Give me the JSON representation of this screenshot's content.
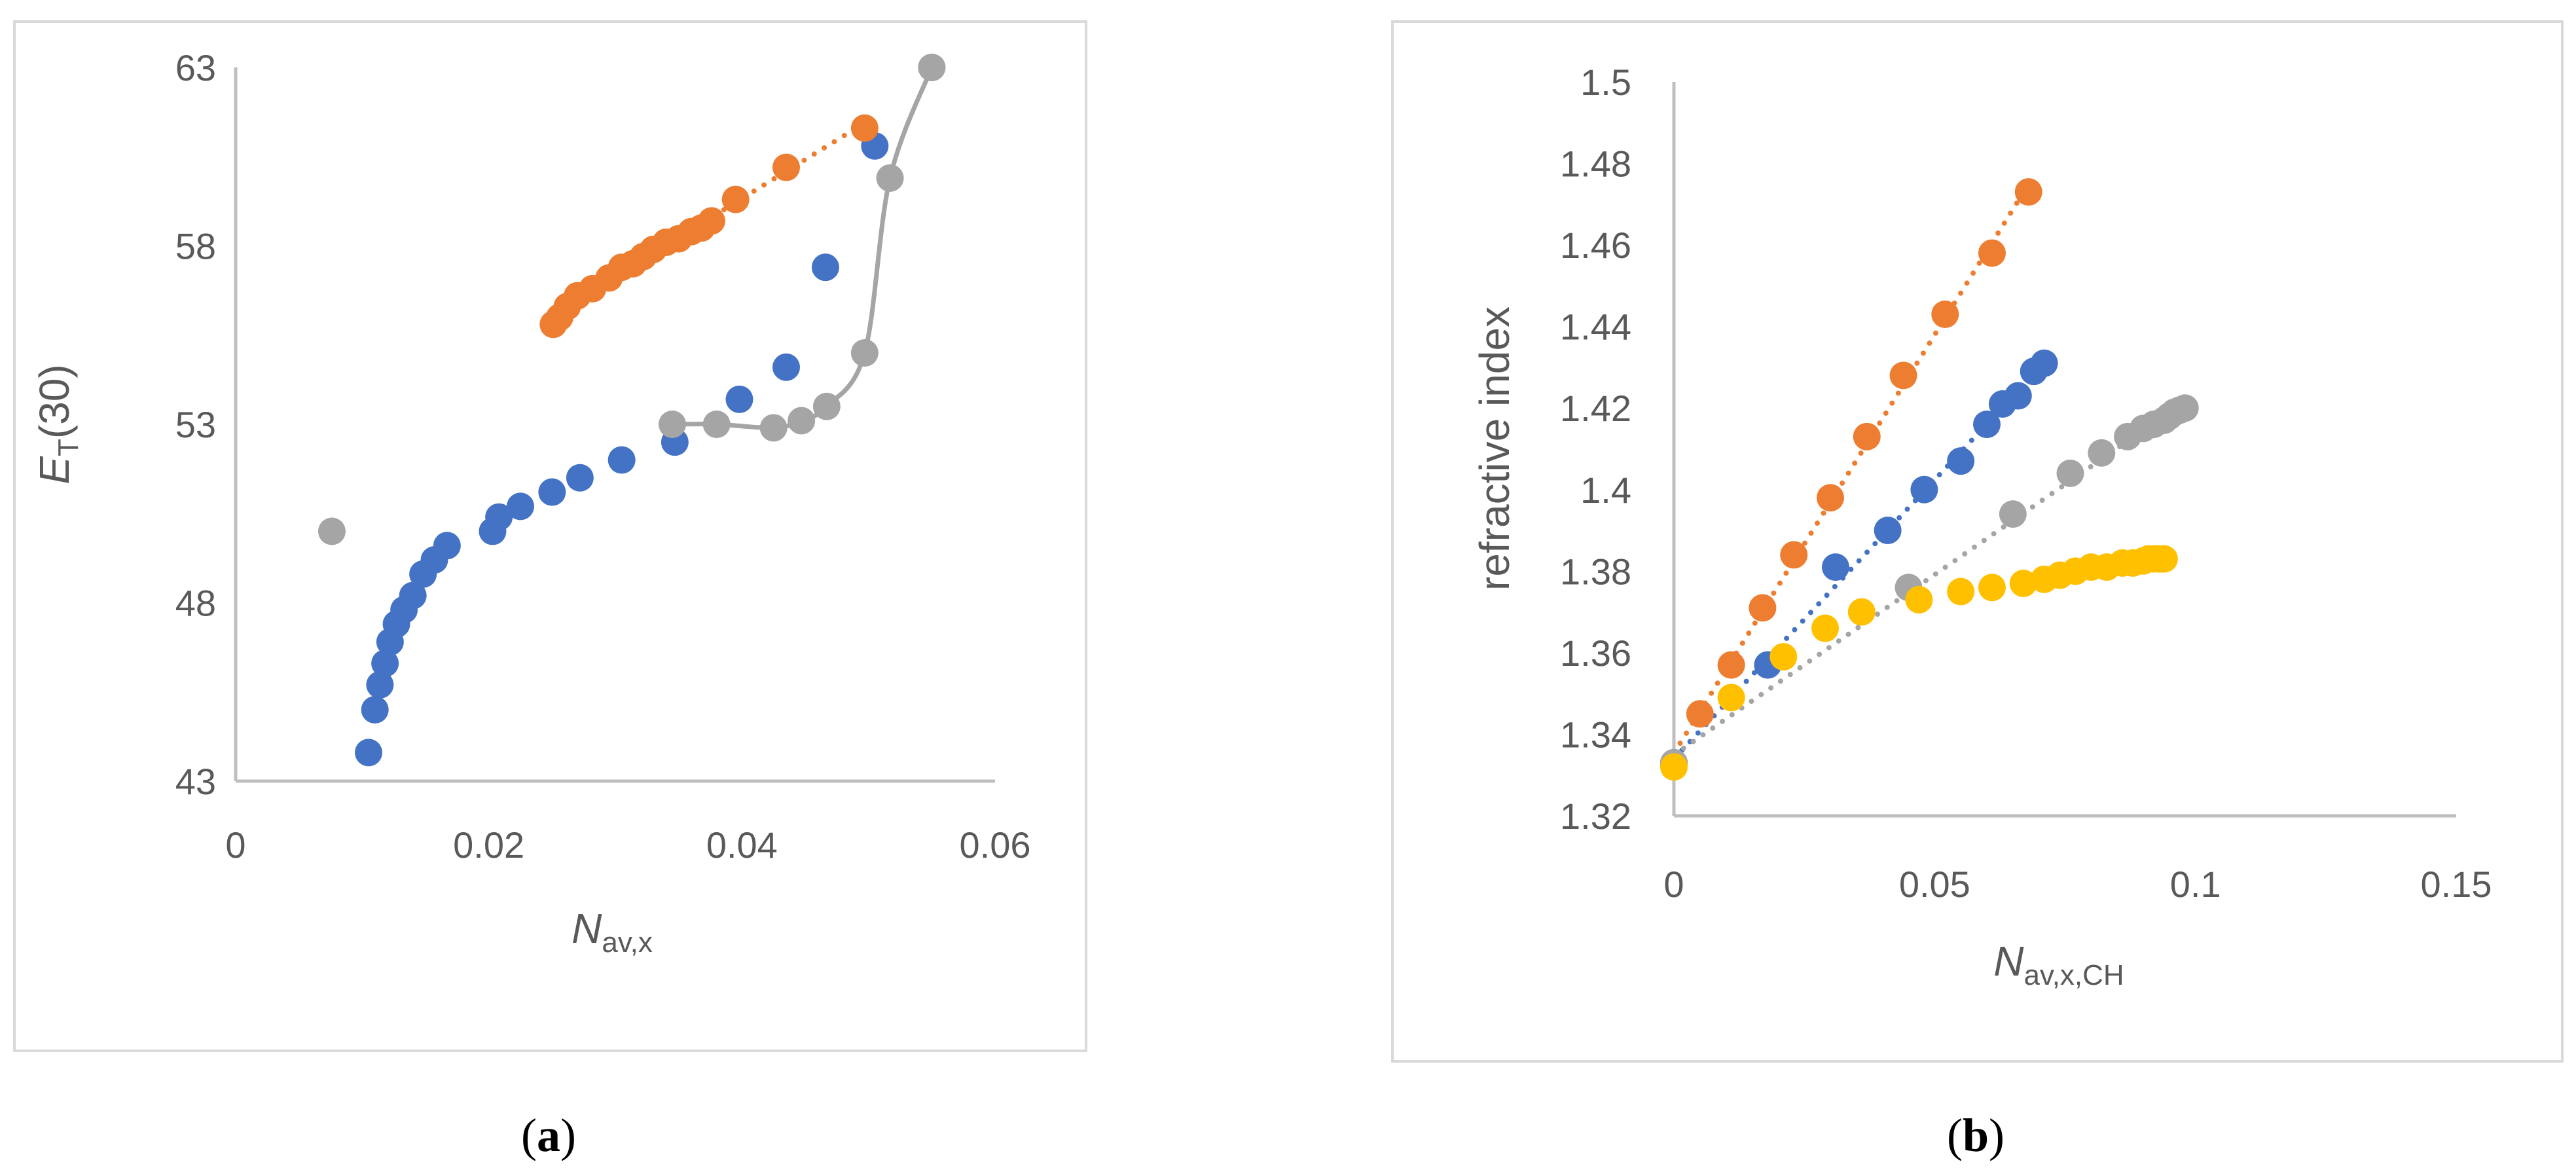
{
  "chart_data": [
    {
      "type": "scatter",
      "panel": "a",
      "caption": {
        "open": "(",
        "letter": "a",
        "close": ")"
      },
      "xlabel": {
        "main": "N",
        "sub": "av,x"
      },
      "ylabel": {
        "main": "E",
        "sub": "T",
        "suffix": "(30)"
      },
      "xlim": [
        0,
        0.06
      ],
      "ylim": [
        43,
        63
      ],
      "x_ticks": [
        0,
        0.02,
        0.04,
        0.06
      ],
      "x_tick_labels": [
        "0",
        "0.02",
        "0.04",
        "0.06"
      ],
      "y_ticks": [
        43,
        48,
        53,
        58,
        63
      ],
      "y_tick_labels": [
        "43",
        "48",
        "53",
        "58",
        "63"
      ],
      "grid": false,
      "series": [
        {
          "name": "blue",
          "color": "#4472C4",
          "line": "none",
          "points": [
            [
              0.0105,
              43.8
            ],
            [
              0.011,
              45.0
            ],
            [
              0.0114,
              45.7
            ],
            [
              0.0118,
              46.3
            ],
            [
              0.0122,
              46.9
            ],
            [
              0.0127,
              47.4
            ],
            [
              0.0133,
              47.8
            ],
            [
              0.014,
              48.2
            ],
            [
              0.0148,
              48.8
            ],
            [
              0.0157,
              49.2
            ],
            [
              0.0167,
              49.6
            ],
            [
              0.0203,
              50.0
            ],
            [
              0.0208,
              50.4
            ],
            [
              0.0225,
              50.7
            ],
            [
              0.025,
              51.1
            ],
            [
              0.0272,
              51.5
            ],
            [
              0.0305,
              52.0
            ],
            [
              0.0347,
              52.5
            ],
            [
              0.0398,
              53.7
            ],
            [
              0.0435,
              54.6
            ],
            [
              0.0466,
              57.4
            ],
            [
              0.0505,
              60.8
            ],
            [
              0.055,
              63.0
            ]
          ]
        },
        {
          "name": "orange",
          "color": "#ED7D31",
          "line": "dotted-trend",
          "points": [
            [
              0.0251,
              55.8
            ],
            [
              0.0256,
              56.0
            ],
            [
              0.0262,
              56.3
            ],
            [
              0.027,
              56.6
            ],
            [
              0.0282,
              56.8
            ],
            [
              0.0295,
              57.1
            ],
            [
              0.0305,
              57.4
            ],
            [
              0.0314,
              57.5
            ],
            [
              0.0322,
              57.7
            ],
            [
              0.033,
              57.9
            ],
            [
              0.034,
              58.1
            ],
            [
              0.035,
              58.2
            ],
            [
              0.036,
              58.4
            ],
            [
              0.0368,
              58.5
            ],
            [
              0.0376,
              58.7
            ],
            [
              0.0395,
              59.3
            ],
            [
              0.0435,
              60.2
            ],
            [
              0.0497,
              61.3
            ]
          ]
        },
        {
          "name": "gray",
          "color": "#A5A5A5",
          "line": "smooth",
          "points": [
            [
              0.0076,
              50.0
            ],
            [
              0.0345,
              53.0
            ],
            [
              0.038,
              53.0
            ],
            [
              0.0425,
              52.9
            ],
            [
              0.0447,
              53.1
            ],
            [
              0.0467,
              53.5
            ],
            [
              0.0497,
              55.0
            ],
            [
              0.0517,
              59.9
            ],
            [
              0.055,
              63.0
            ]
          ]
        }
      ]
    },
    {
      "type": "scatter",
      "panel": "b",
      "caption": {
        "open": "(",
        "letter": "b",
        "close": ")"
      },
      "xlabel": {
        "main": "N",
        "sub": "av,x,CH"
      },
      "ylabel": {
        "main": "refractive index"
      },
      "xlim": [
        0,
        0.15
      ],
      "ylim": [
        1.32,
        1.5
      ],
      "x_ticks": [
        0,
        0.05,
        0.1,
        0.15
      ],
      "x_tick_labels": [
        "0",
        "0.05",
        "0.1",
        "0.15"
      ],
      "y_ticks": [
        1.32,
        1.34,
        1.36,
        1.38,
        1.4,
        1.42,
        1.44,
        1.46,
        1.48,
        1.5
      ],
      "y_tick_labels": [
        "1.32",
        "1.34",
        "1.36",
        "1.38",
        "1.4",
        "1.42",
        "1.44",
        "1.46",
        "1.48",
        "1.5"
      ],
      "grid": false,
      "series": [
        {
          "name": "orange",
          "color": "#ED7D31",
          "line": "dotted-trend",
          "points": [
            [
              0.0,
              1.333
            ],
            [
              0.005,
              1.345
            ],
            [
              0.011,
              1.357
            ],
            [
              0.017,
              1.371
            ],
            [
              0.023,
              1.384
            ],
            [
              0.03,
              1.398
            ],
            [
              0.037,
              1.413
            ],
            [
              0.044,
              1.428
            ],
            [
              0.052,
              1.443
            ],
            [
              0.061,
              1.458
            ],
            [
              0.068,
              1.473
            ]
          ]
        },
        {
          "name": "blue",
          "color": "#4472C4",
          "line": "dotted-trend",
          "points": [
            [
              0.0,
              1.333
            ],
            [
              0.018,
              1.357
            ],
            [
              0.031,
              1.381
            ],
            [
              0.041,
              1.39
            ],
            [
              0.048,
              1.4
            ],
            [
              0.055,
              1.407
            ],
            [
              0.06,
              1.416
            ],
            [
              0.063,
              1.421
            ],
            [
              0.066,
              1.423
            ],
            [
              0.069,
              1.429
            ],
            [
              0.071,
              1.431
            ]
          ]
        },
        {
          "name": "gray",
          "color": "#A5A5A5",
          "line": "dotted-trend",
          "points": [
            [
              0.0,
              1.333
            ],
            [
              0.045,
              1.376
            ],
            [
              0.065,
              1.394
            ],
            [
              0.076,
              1.404
            ],
            [
              0.082,
              1.409
            ],
            [
              0.087,
              1.413
            ],
            [
              0.09,
              1.415
            ],
            [
              0.092,
              1.416
            ],
            [
              0.094,
              1.417
            ],
            [
              0.095,
              1.418
            ],
            [
              0.096,
              1.419
            ],
            [
              0.097,
              1.4195
            ],
            [
              0.098,
              1.42
            ]
          ]
        },
        {
          "name": "yellow",
          "color": "#FFC000",
          "line": "none",
          "points": [
            [
              0.0,
              1.332
            ],
            [
              0.011,
              1.349
            ],
            [
              0.021,
              1.359
            ],
            [
              0.029,
              1.366
            ],
            [
              0.036,
              1.37
            ],
            [
              0.047,
              1.373
            ],
            [
              0.055,
              1.375
            ],
            [
              0.061,
              1.376
            ],
            [
              0.067,
              1.377
            ],
            [
              0.071,
              1.378
            ],
            [
              0.074,
              1.379
            ],
            [
              0.077,
              1.38
            ],
            [
              0.08,
              1.381
            ],
            [
              0.083,
              1.381
            ],
            [
              0.086,
              1.382
            ],
            [
              0.088,
              1.382
            ],
            [
              0.09,
              1.3825
            ],
            [
              0.091,
              1.383
            ],
            [
              0.092,
              1.383
            ],
            [
              0.093,
              1.383
            ],
            [
              0.094,
              1.383
            ]
          ]
        }
      ]
    }
  ]
}
